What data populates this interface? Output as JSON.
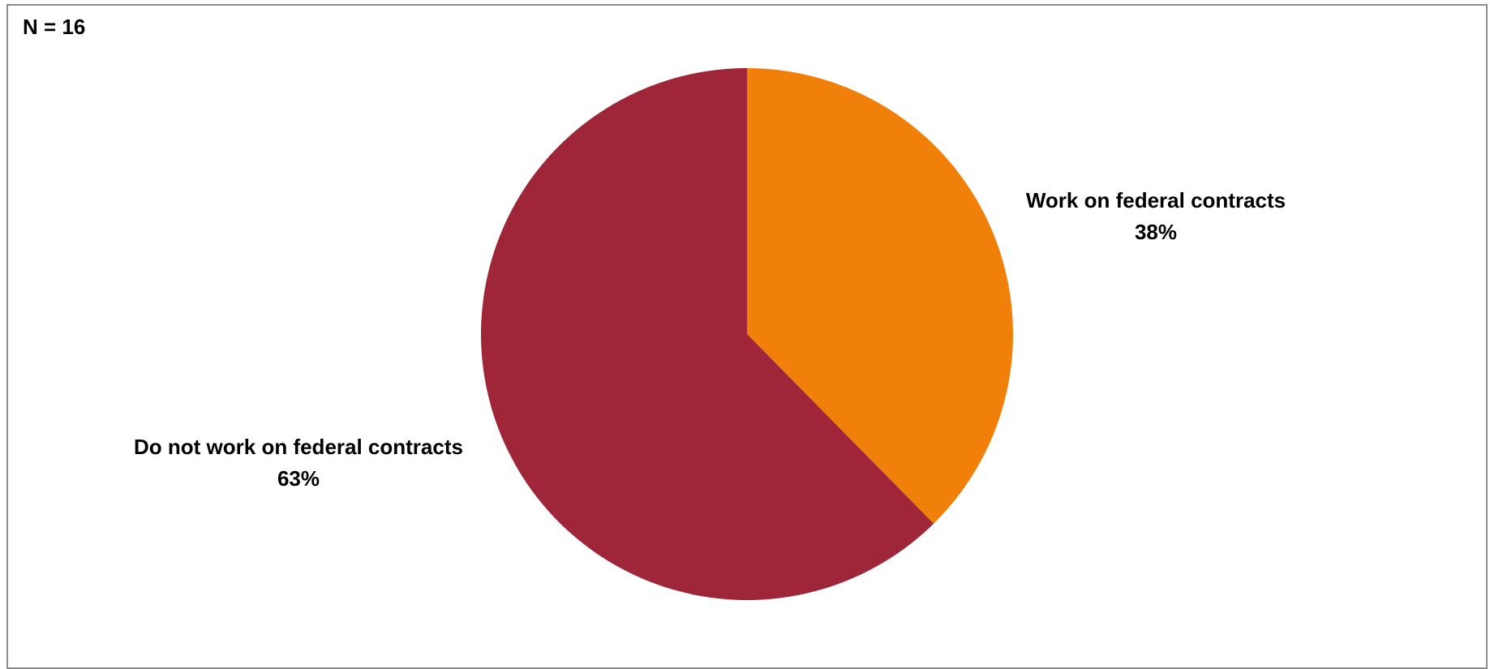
{
  "chart_data": {
    "type": "pie",
    "annotation": "N = 16",
    "title": "",
    "legend": "none",
    "slices": [
      {
        "label": "Work on federal contracts",
        "value": 38,
        "value_label": "38%",
        "color": "#F0800A"
      },
      {
        "label": "Do not work on federal contracts",
        "value": 63,
        "value_label": "63%",
        "color": "#9E2638"
      }
    ]
  }
}
